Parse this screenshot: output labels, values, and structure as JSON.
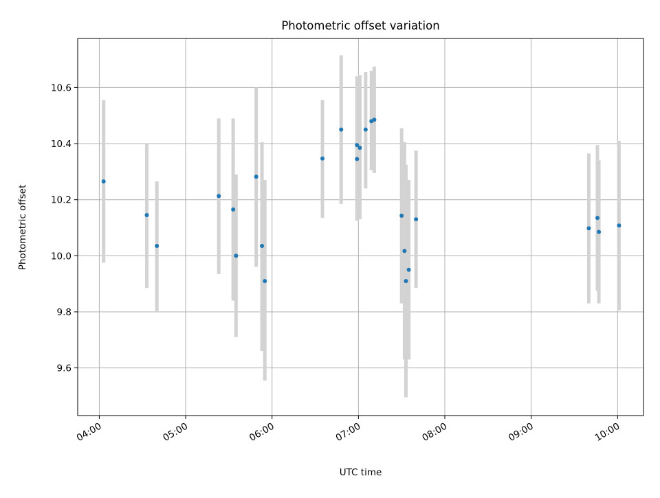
{
  "chart_data": {
    "type": "scatter",
    "title": "Photometric offset variation",
    "xlabel": "UTC time",
    "ylabel": "Photometric offset",
    "xlim": [
      "03:45",
      "10:18"
    ],
    "ylim": [
      9.43,
      10.775
    ],
    "grid": true,
    "x_ticks": [
      "04:00",
      "05:00",
      "06:00",
      "07:00",
      "08:00",
      "09:00",
      "10:00"
    ],
    "y_ticks": [
      "9.6",
      "9.8",
      "10.0",
      "10.2",
      "10.4",
      "10.6"
    ],
    "colors": {
      "point": "#1f77b4",
      "errorbar": "#d3d3d3",
      "grid": "#b0b0b0",
      "axes": "#000000"
    },
    "points": [
      {
        "x": "04:03",
        "y": 10.265,
        "low": 9.975,
        "high": 10.555
      },
      {
        "x": "04:33",
        "y": 10.145,
        "low": 9.885,
        "high": 10.4
      },
      {
        "x": "04:40",
        "y": 10.035,
        "low": 9.8,
        "high": 10.265
      },
      {
        "x": "05:23",
        "y": 10.213,
        "low": 9.935,
        "high": 10.49
      },
      {
        "x": "05:33",
        "y": 10.165,
        "low": 9.84,
        "high": 10.49
      },
      {
        "x": "05:35",
        "y": 10.0,
        "low": 9.71,
        "high": 10.29
      },
      {
        "x": "05:49",
        "y": 10.282,
        "low": 9.96,
        "high": 10.6
      },
      {
        "x": "05:53",
        "y": 10.035,
        "low": 9.66,
        "high": 10.405
      },
      {
        "x": "05:55",
        "y": 9.91,
        "low": 9.555,
        "high": 10.27
      },
      {
        "x": "06:35",
        "y": 10.347,
        "low": 10.135,
        "high": 10.555
      },
      {
        "x": "06:48",
        "y": 10.45,
        "low": 10.185,
        "high": 10.715
      },
      {
        "x": "06:59",
        "y": 10.345,
        "low": 10.125,
        "high": 10.605
      },
      {
        "x": "06:59",
        "y": 10.395,
        "low": 10.125,
        "high": 10.64
      },
      {
        "x": "07:01",
        "y": 10.385,
        "low": 10.13,
        "high": 10.645
      },
      {
        "x": "07:05",
        "y": 10.45,
        "low": 10.24,
        "high": 10.655
      },
      {
        "x": "07:09",
        "y": 10.48,
        "low": 10.305,
        "high": 10.66
      },
      {
        "x": "07:11",
        "y": 10.485,
        "low": 10.295,
        "high": 10.675
      },
      {
        "x": "07:30",
        "y": 10.143,
        "low": 9.83,
        "high": 10.455
      },
      {
        "x": "07:32",
        "y": 10.017,
        "low": 9.63,
        "high": 10.405
      },
      {
        "x": "07:33",
        "y": 9.91,
        "low": 9.495,
        "high": 10.325
      },
      {
        "x": "07:35",
        "y": 9.95,
        "low": 9.63,
        "high": 10.27
      },
      {
        "x": "07:40",
        "y": 10.13,
        "low": 9.885,
        "high": 10.375
      },
      {
        "x": "09:40",
        "y": 10.098,
        "low": 9.83,
        "high": 10.365
      },
      {
        "x": "09:46",
        "y": 10.135,
        "low": 9.875,
        "high": 10.395
      },
      {
        "x": "09:47",
        "y": 10.085,
        "low": 9.83,
        "high": 10.34
      },
      {
        "x": "10:01",
        "y": 10.108,
        "low": 9.805,
        "high": 10.41
      }
    ]
  }
}
